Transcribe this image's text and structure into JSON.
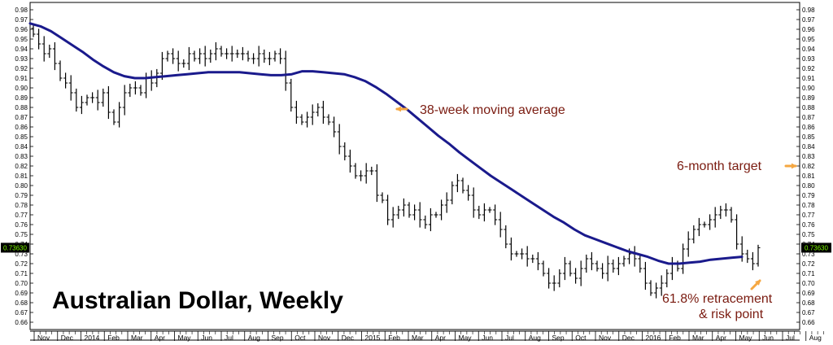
{
  "chart_data": {
    "type": "ohlc",
    "title": "Australian Dollar, Weekly",
    "xlabel": "",
    "ylabel": "",
    "ylim": [
      0.655,
      0.985
    ],
    "y_ticks": [
      "0.98",
      "0.97",
      "0.96",
      "0.95",
      "0.94",
      "0.93",
      "0.92",
      "0.91",
      "0.90",
      "0.89",
      "0.88",
      "0.87",
      "0.86",
      "0.85",
      "0.84",
      "0.83",
      "0.82",
      "0.81",
      "0.80",
      "0.79",
      "0.78",
      "0.77",
      "0.76",
      "0.75",
      "0.74",
      "0.73",
      "0.72",
      "0.71",
      "0.70",
      "0.69",
      "0.68",
      "0.67",
      "0.66"
    ],
    "current_price_label": "0.73630",
    "current_price": 0.7363,
    "month_labels": [
      "Nov",
      "Dec",
      "2014",
      "Feb",
      "Mar",
      "Apr",
      "May",
      "Jun",
      "Jul",
      "Aug",
      "Sep",
      "Oct",
      "Nov",
      "Dec",
      "2015",
      "Feb",
      "Mar",
      "Apr",
      "May",
      "Jun",
      "Jul",
      "Aug",
      "Sep",
      "Oct",
      "Nov",
      "Dec",
      "2016",
      "Feb",
      "Mar",
      "Apr",
      "May",
      "Jun",
      "Jul",
      "Aug"
    ],
    "weekly_closes": [
      0.955,
      0.945,
      0.935,
      0.94,
      0.925,
      0.91,
      0.905,
      0.895,
      0.88,
      0.885,
      0.89,
      0.89,
      0.885,
      0.895,
      0.875,
      0.865,
      0.88,
      0.895,
      0.9,
      0.9,
      0.895,
      0.91,
      0.905,
      0.915,
      0.93,
      0.935,
      0.93,
      0.925,
      0.925,
      0.935,
      0.93,
      0.935,
      0.93,
      0.935,
      0.94,
      0.935,
      0.935,
      0.935,
      0.935,
      0.935,
      0.93,
      0.93,
      0.935,
      0.93,
      0.93,
      0.935,
      0.93,
      0.905,
      0.88,
      0.87,
      0.865,
      0.87,
      0.875,
      0.88,
      0.87,
      0.865,
      0.855,
      0.84,
      0.83,
      0.82,
      0.81,
      0.81,
      0.815,
      0.815,
      0.79,
      0.785,
      0.765,
      0.77,
      0.775,
      0.78,
      0.77,
      0.775,
      0.765,
      0.76,
      0.77,
      0.77,
      0.78,
      0.785,
      0.8,
      0.805,
      0.795,
      0.79,
      0.775,
      0.77,
      0.775,
      0.775,
      0.765,
      0.755,
      0.74,
      0.73,
      0.73,
      0.73,
      0.725,
      0.725,
      0.72,
      0.71,
      0.7,
      0.7,
      0.71,
      0.72,
      0.71,
      0.705,
      0.715,
      0.725,
      0.72,
      0.715,
      0.71,
      0.72,
      0.715,
      0.72,
      0.725,
      0.73,
      0.725,
      0.715,
      0.7,
      0.69,
      0.695,
      0.7,
      0.71,
      0.72,
      0.715,
      0.735,
      0.745,
      0.755,
      0.76,
      0.76,
      0.765,
      0.77,
      0.775,
      0.775,
      0.765,
      0.74,
      0.73,
      0.725,
      0.72,
      0.7363
    ],
    "series": [
      {
        "name": "38-week moving average",
        "color": "#1a1a8c",
        "style": "line",
        "values": [
          0.966,
          0.963,
          0.958,
          0.951,
          0.944,
          0.937,
          0.929,
          0.922,
          0.916,
          0.912,
          0.91,
          0.91,
          0.911,
          0.912,
          0.913,
          0.914,
          0.915,
          0.916,
          0.916,
          0.916,
          0.916,
          0.915,
          0.914,
          0.913,
          0.913,
          0.914,
          0.917,
          0.917,
          0.916,
          0.915,
          0.914,
          0.911,
          0.907,
          0.901,
          0.894,
          0.886,
          0.878,
          0.869,
          0.86,
          0.851,
          0.843,
          0.834,
          0.826,
          0.818,
          0.81,
          0.803,
          0.796,
          0.789,
          0.782,
          0.775,
          0.768,
          0.762,
          0.755,
          0.749,
          0.745,
          0.741,
          0.737,
          0.733,
          0.73,
          0.727,
          0.723,
          0.72,
          0.72,
          0.721,
          0.722,
          0.724,
          0.725,
          0.726,
          0.727
        ]
      }
    ],
    "annotations": [
      {
        "text": "38-week moving average",
        "arrow": "left",
        "color": "#7a1b10"
      },
      {
        "text": "6-month target",
        "arrow": "right",
        "color": "#7a1b10"
      },
      {
        "text": "61.8%  retracement",
        "arrow": "up-right",
        "color": "#7a1b10"
      },
      {
        "text": "& risk point",
        "color": "#7a1b10"
      }
    ],
    "arrow_color": "#f5a742",
    "price_bar_color": "#000000",
    "grid": false,
    "legend": "none"
  }
}
